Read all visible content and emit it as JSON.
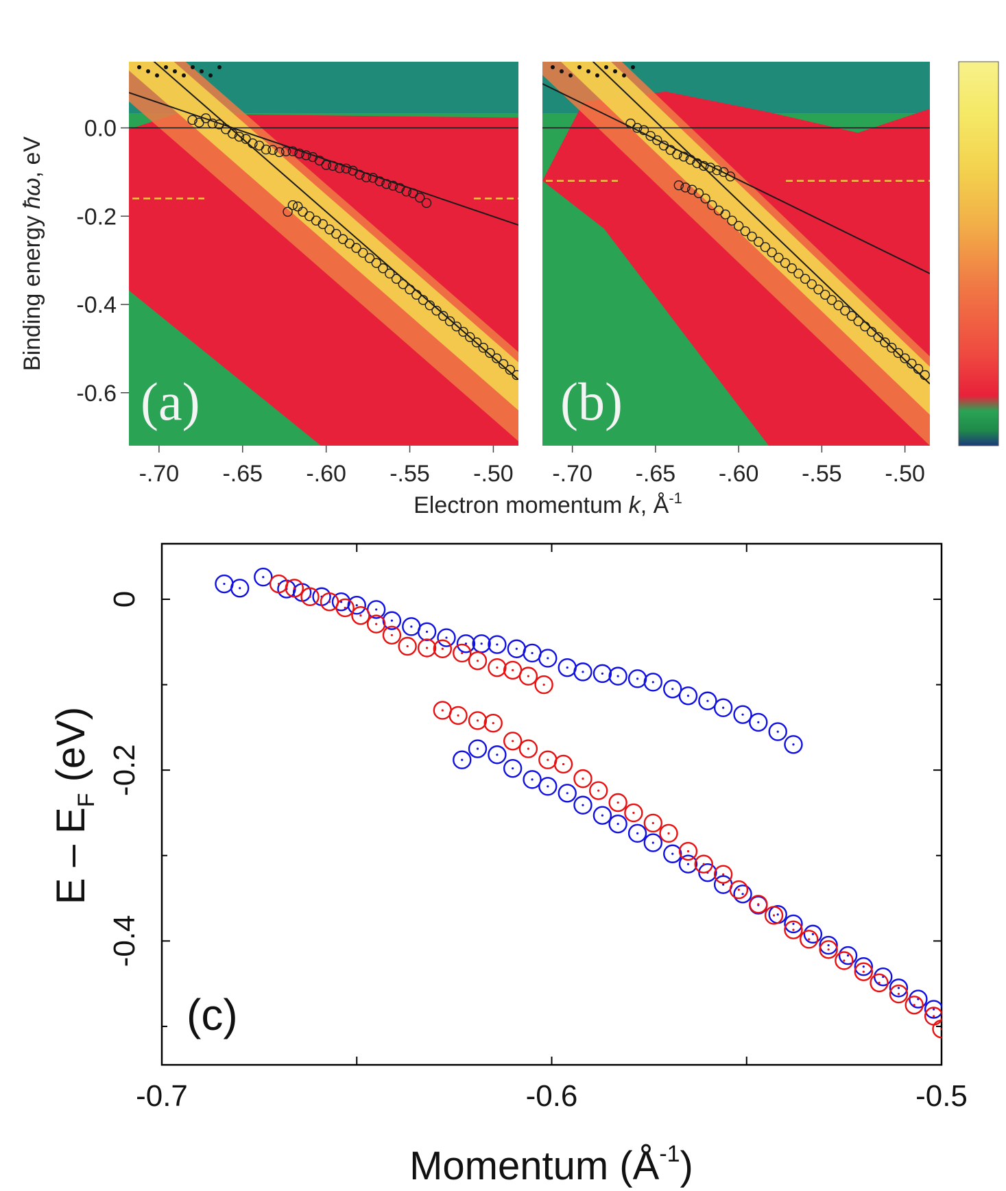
{
  "chart_data": [
    {
      "type": "heatmap",
      "panel": "(a)",
      "xlabel_prefix": "Electron momentum ",
      "xlabel_var": "k",
      "xlabel_suffix": ", Å",
      "xlabel_sup": "-1",
      "ylabel_prefix": "Binding energy ",
      "ylabel_var": "ħω",
      "ylabel_suffix": ", eV",
      "xlim": [
        -0.718,
        -0.485
      ],
      "ylim": [
        -0.72,
        0.15
      ],
      "xticks": [
        -0.7,
        -0.65,
        -0.6,
        -0.55,
        -0.5
      ],
      "xtick_labels": [
        "-.70",
        "-.65",
        "-.60",
        "-.55",
        "-.50"
      ],
      "yticks": [
        0.0,
        -0.2,
        -0.4,
        -0.6
      ],
      "ytick_labels": [
        "0.0",
        "-0.2",
        "-0.4",
        "-0.6"
      ],
      "dashed_level": -0.16,
      "fit_lines": [
        {
          "x": [
            -0.718,
            -0.485
          ],
          "y": [
            0.08,
            -0.22
          ]
        },
        {
          "x": [
            -0.718,
            -0.485
          ],
          "y": [
            0.2,
            -0.57
          ]
        }
      ],
      "points": [
        {
          "name": "upper",
          "x": [
            -0.68,
            -0.676,
            -0.672,
            -0.668,
            -0.664,
            -0.66,
            -0.656,
            -0.652,
            -0.648,
            -0.644,
            -0.64,
            -0.636,
            -0.632,
            -0.628,
            -0.624,
            -0.62,
            -0.616,
            -0.612,
            -0.608,
            -0.604,
            -0.6,
            -0.596,
            -0.592,
            -0.588,
            -0.584,
            -0.58,
            -0.576,
            -0.572,
            -0.568,
            -0.564,
            -0.56,
            -0.556,
            -0.552,
            -0.548,
            -0.544,
            -0.54
          ],
          "y": [
            0.018,
            0.012,
            0.022,
            0.01,
            0.008,
            -0.003,
            -0.013,
            -0.02,
            -0.025,
            -0.035,
            -0.04,
            -0.049,
            -0.05,
            -0.055,
            -0.053,
            -0.053,
            -0.058,
            -0.062,
            -0.066,
            -0.074,
            -0.084,
            -0.086,
            -0.091,
            -0.092,
            -0.097,
            -0.106,
            -0.112,
            -0.113,
            -0.121,
            -0.127,
            -0.131,
            -0.136,
            -0.144,
            -0.148,
            -0.158,
            -0.17
          ]
        },
        {
          "name": "lower",
          "x": [
            -0.623,
            -0.62,
            -0.617,
            -0.614,
            -0.61,
            -0.606,
            -0.602,
            -0.598,
            -0.594,
            -0.59,
            -0.586,
            -0.582,
            -0.578,
            -0.574,
            -0.57,
            -0.566,
            -0.562,
            -0.558,
            -0.554,
            -0.55,
            -0.546,
            -0.542,
            -0.538,
            -0.534,
            -0.53,
            -0.526,
            -0.522,
            -0.518,
            -0.514,
            -0.51,
            -0.506,
            -0.502,
            -0.498,
            -0.494,
            -0.49,
            -0.486
          ],
          "y": [
            -0.19,
            -0.175,
            -0.178,
            -0.19,
            -0.2,
            -0.21,
            -0.218,
            -0.23,
            -0.24,
            -0.252,
            -0.262,
            -0.272,
            -0.283,
            -0.295,
            -0.306,
            -0.318,
            -0.33,
            -0.342,
            -0.354,
            -0.366,
            -0.378,
            -0.39,
            -0.402,
            -0.414,
            -0.426,
            -0.438,
            -0.45,
            -0.462,
            -0.474,
            -0.486,
            -0.498,
            -0.51,
            -0.522,
            -0.535,
            -0.548,
            -0.56
          ]
        }
      ]
    },
    {
      "type": "heatmap",
      "panel": "(b)",
      "xlim": [
        -0.718,
        -0.485
      ],
      "ylim": [
        -0.72,
        0.15
      ],
      "xticks": [
        -0.7,
        -0.65,
        -0.6,
        -0.55,
        -0.5
      ],
      "xtick_labels": [
        "-.70",
        "-.65",
        "-.60",
        "-.55",
        "-.50"
      ],
      "dashed_level": -0.12,
      "fit_lines": [
        {
          "x": [
            -0.718,
            -0.485
          ],
          "y": [
            0.1,
            -0.33
          ]
        },
        {
          "x": [
            -0.718,
            -0.485
          ],
          "y": [
            0.26,
            -0.58
          ]
        }
      ],
      "points": [
        {
          "name": "upper",
          "x": [
            -0.665,
            -0.661,
            -0.657,
            -0.653,
            -0.649,
            -0.645,
            -0.641,
            -0.637,
            -0.633,
            -0.629,
            -0.625,
            -0.621,
            -0.617,
            -0.613,
            -0.609,
            -0.605
          ],
          "y": [
            0.01,
            0.0,
            -0.005,
            -0.018,
            -0.028,
            -0.04,
            -0.05,
            -0.06,
            -0.065,
            -0.072,
            -0.08,
            -0.086,
            -0.09,
            -0.096,
            -0.1,
            -0.11
          ]
        },
        {
          "name": "lower",
          "x": [
            -0.636,
            -0.632,
            -0.628,
            -0.624,
            -0.62,
            -0.616,
            -0.612,
            -0.608,
            -0.604,
            -0.6,
            -0.596,
            -0.592,
            -0.588,
            -0.584,
            -0.58,
            -0.576,
            -0.572,
            -0.568,
            -0.564,
            -0.56,
            -0.556,
            -0.552,
            -0.548,
            -0.544,
            -0.54,
            -0.536,
            -0.532,
            -0.528,
            -0.524,
            -0.52,
            -0.516,
            -0.512,
            -0.508,
            -0.504,
            -0.5,
            -0.496,
            -0.492,
            -0.488
          ],
          "y": [
            -0.13,
            -0.135,
            -0.14,
            -0.148,
            -0.16,
            -0.175,
            -0.187,
            -0.196,
            -0.21,
            -0.222,
            -0.234,
            -0.246,
            -0.258,
            -0.27,
            -0.282,
            -0.294,
            -0.306,
            -0.318,
            -0.33,
            -0.342,
            -0.354,
            -0.366,
            -0.378,
            -0.39,
            -0.402,
            -0.414,
            -0.426,
            -0.438,
            -0.45,
            -0.462,
            -0.474,
            -0.486,
            -0.498,
            -0.51,
            -0.522,
            -0.534,
            -0.546,
            -0.56
          ]
        }
      ]
    },
    {
      "type": "scatter",
      "panel": "(c)",
      "xlabel": "Momentum (Å",
      "xlabel_sup": "-1",
      "xlabel_close": ")",
      "ylabel": "E – E",
      "ylabel_sub": "F",
      "ylabel_close": " (eV)",
      "xlim": [
        -0.7,
        -0.5
      ],
      "ylim": [
        -0.545,
        0.065
      ],
      "xticks": [
        -0.7,
        -0.6,
        -0.5
      ],
      "xtick_labels": [
        "-0.7",
        "-0.6",
        "-0.5"
      ],
      "yticks": [
        0,
        -0.2,
        -0.4
      ],
      "ytick_labels": [
        "0",
        "-0.2",
        "-0.4"
      ],
      "series": [
        {
          "name": "blue",
          "color": "#1010e0",
          "x": [
            -0.684,
            -0.68,
            -0.674,
            -0.668,
            -0.664,
            -0.659,
            -0.654,
            -0.65,
            -0.645,
            -0.641,
            -0.636,
            -0.632,
            -0.627,
            -0.622,
            -0.618,
            -0.614,
            -0.609,
            -0.605,
            -0.601,
            -0.596,
            -0.592,
            -0.587,
            -0.583,
            -0.578,
            -0.574,
            -0.569,
            -0.565,
            -0.56,
            -0.556,
            -0.551,
            -0.547,
            -0.542,
            -0.538
          ],
          "y": [
            0.018,
            0.013,
            0.026,
            0.012,
            0.008,
            0.003,
            -0.003,
            -0.007,
            -0.012,
            -0.025,
            -0.032,
            -0.038,
            -0.045,
            -0.052,
            -0.052,
            -0.053,
            -0.058,
            -0.063,
            -0.069,
            -0.08,
            -0.085,
            -0.087,
            -0.09,
            -0.093,
            -0.097,
            -0.105,
            -0.113,
            -0.119,
            -0.127,
            -0.135,
            -0.144,
            -0.155,
            -0.17
          ]
        },
        {
          "name": "blue-lower",
          "color": "#1010e0",
          "x": [
            -0.623,
            -0.619,
            -0.614,
            -0.61,
            -0.605,
            -0.601,
            -0.596,
            -0.592,
            -0.587,
            -0.583,
            -0.578,
            -0.574,
            -0.569,
            -0.565,
            -0.56,
            -0.556,
            -0.551,
            -0.547,
            -0.542,
            -0.538,
            -0.533,
            -0.529,
            -0.524,
            -0.52,
            -0.515,
            -0.511,
            -0.506,
            -0.502
          ],
          "y": [
            -0.188,
            -0.175,
            -0.182,
            -0.198,
            -0.211,
            -0.219,
            -0.227,
            -0.241,
            -0.253,
            -0.263,
            -0.274,
            -0.285,
            -0.298,
            -0.31,
            -0.32,
            -0.334,
            -0.345,
            -0.358,
            -0.369,
            -0.38,
            -0.392,
            -0.405,
            -0.417,
            -0.43,
            -0.442,
            -0.455,
            -0.468,
            -0.48
          ]
        },
        {
          "name": "red",
          "color": "#e81010",
          "x": [
            -0.67,
            -0.666,
            -0.662,
            -0.657,
            -0.653,
            -0.649,
            -0.645,
            -0.641,
            -0.637,
            -0.632,
            -0.628,
            -0.623,
            -0.619,
            -0.614,
            -0.61,
            -0.606,
            -0.602
          ],
          "y": [
            0.018,
            0.013,
            0.003,
            -0.003,
            -0.01,
            -0.019,
            -0.029,
            -0.042,
            -0.055,
            -0.057,
            -0.058,
            -0.063,
            -0.072,
            -0.08,
            -0.083,
            -0.09,
            -0.1
          ]
        },
        {
          "name": "red-lower",
          "color": "#e81010",
          "x": [
            -0.628,
            -0.624,
            -0.619,
            -0.615,
            -0.61,
            -0.606,
            -0.601,
            -0.597,
            -0.592,
            -0.588,
            -0.583,
            -0.579,
            -0.574,
            -0.57,
            -0.565,
            -0.561,
            -0.556,
            -0.552,
            -0.547,
            -0.543,
            -0.538,
            -0.534,
            -0.529,
            -0.525,
            -0.52,
            -0.516,
            -0.511,
            -0.507,
            -0.502,
            -0.5
          ],
          "y": [
            -0.13,
            -0.136,
            -0.142,
            -0.145,
            -0.166,
            -0.175,
            -0.188,
            -0.193,
            -0.21,
            -0.224,
            -0.238,
            -0.25,
            -0.262,
            -0.274,
            -0.295,
            -0.31,
            -0.322,
            -0.34,
            -0.357,
            -0.37,
            -0.387,
            -0.398,
            -0.41,
            -0.423,
            -0.436,
            -0.449,
            -0.462,
            -0.475,
            -0.488,
            -0.503
          ]
        }
      ]
    }
  ],
  "colorbar": {
    "stops": [
      "#1c3a7a",
      "#1f8a4a",
      "#2aa355",
      "#e8213a",
      "#ef4a40",
      "#f07a45",
      "#f2b048",
      "#f3d24e",
      "#f5e865",
      "#f7f18a"
    ]
  }
}
